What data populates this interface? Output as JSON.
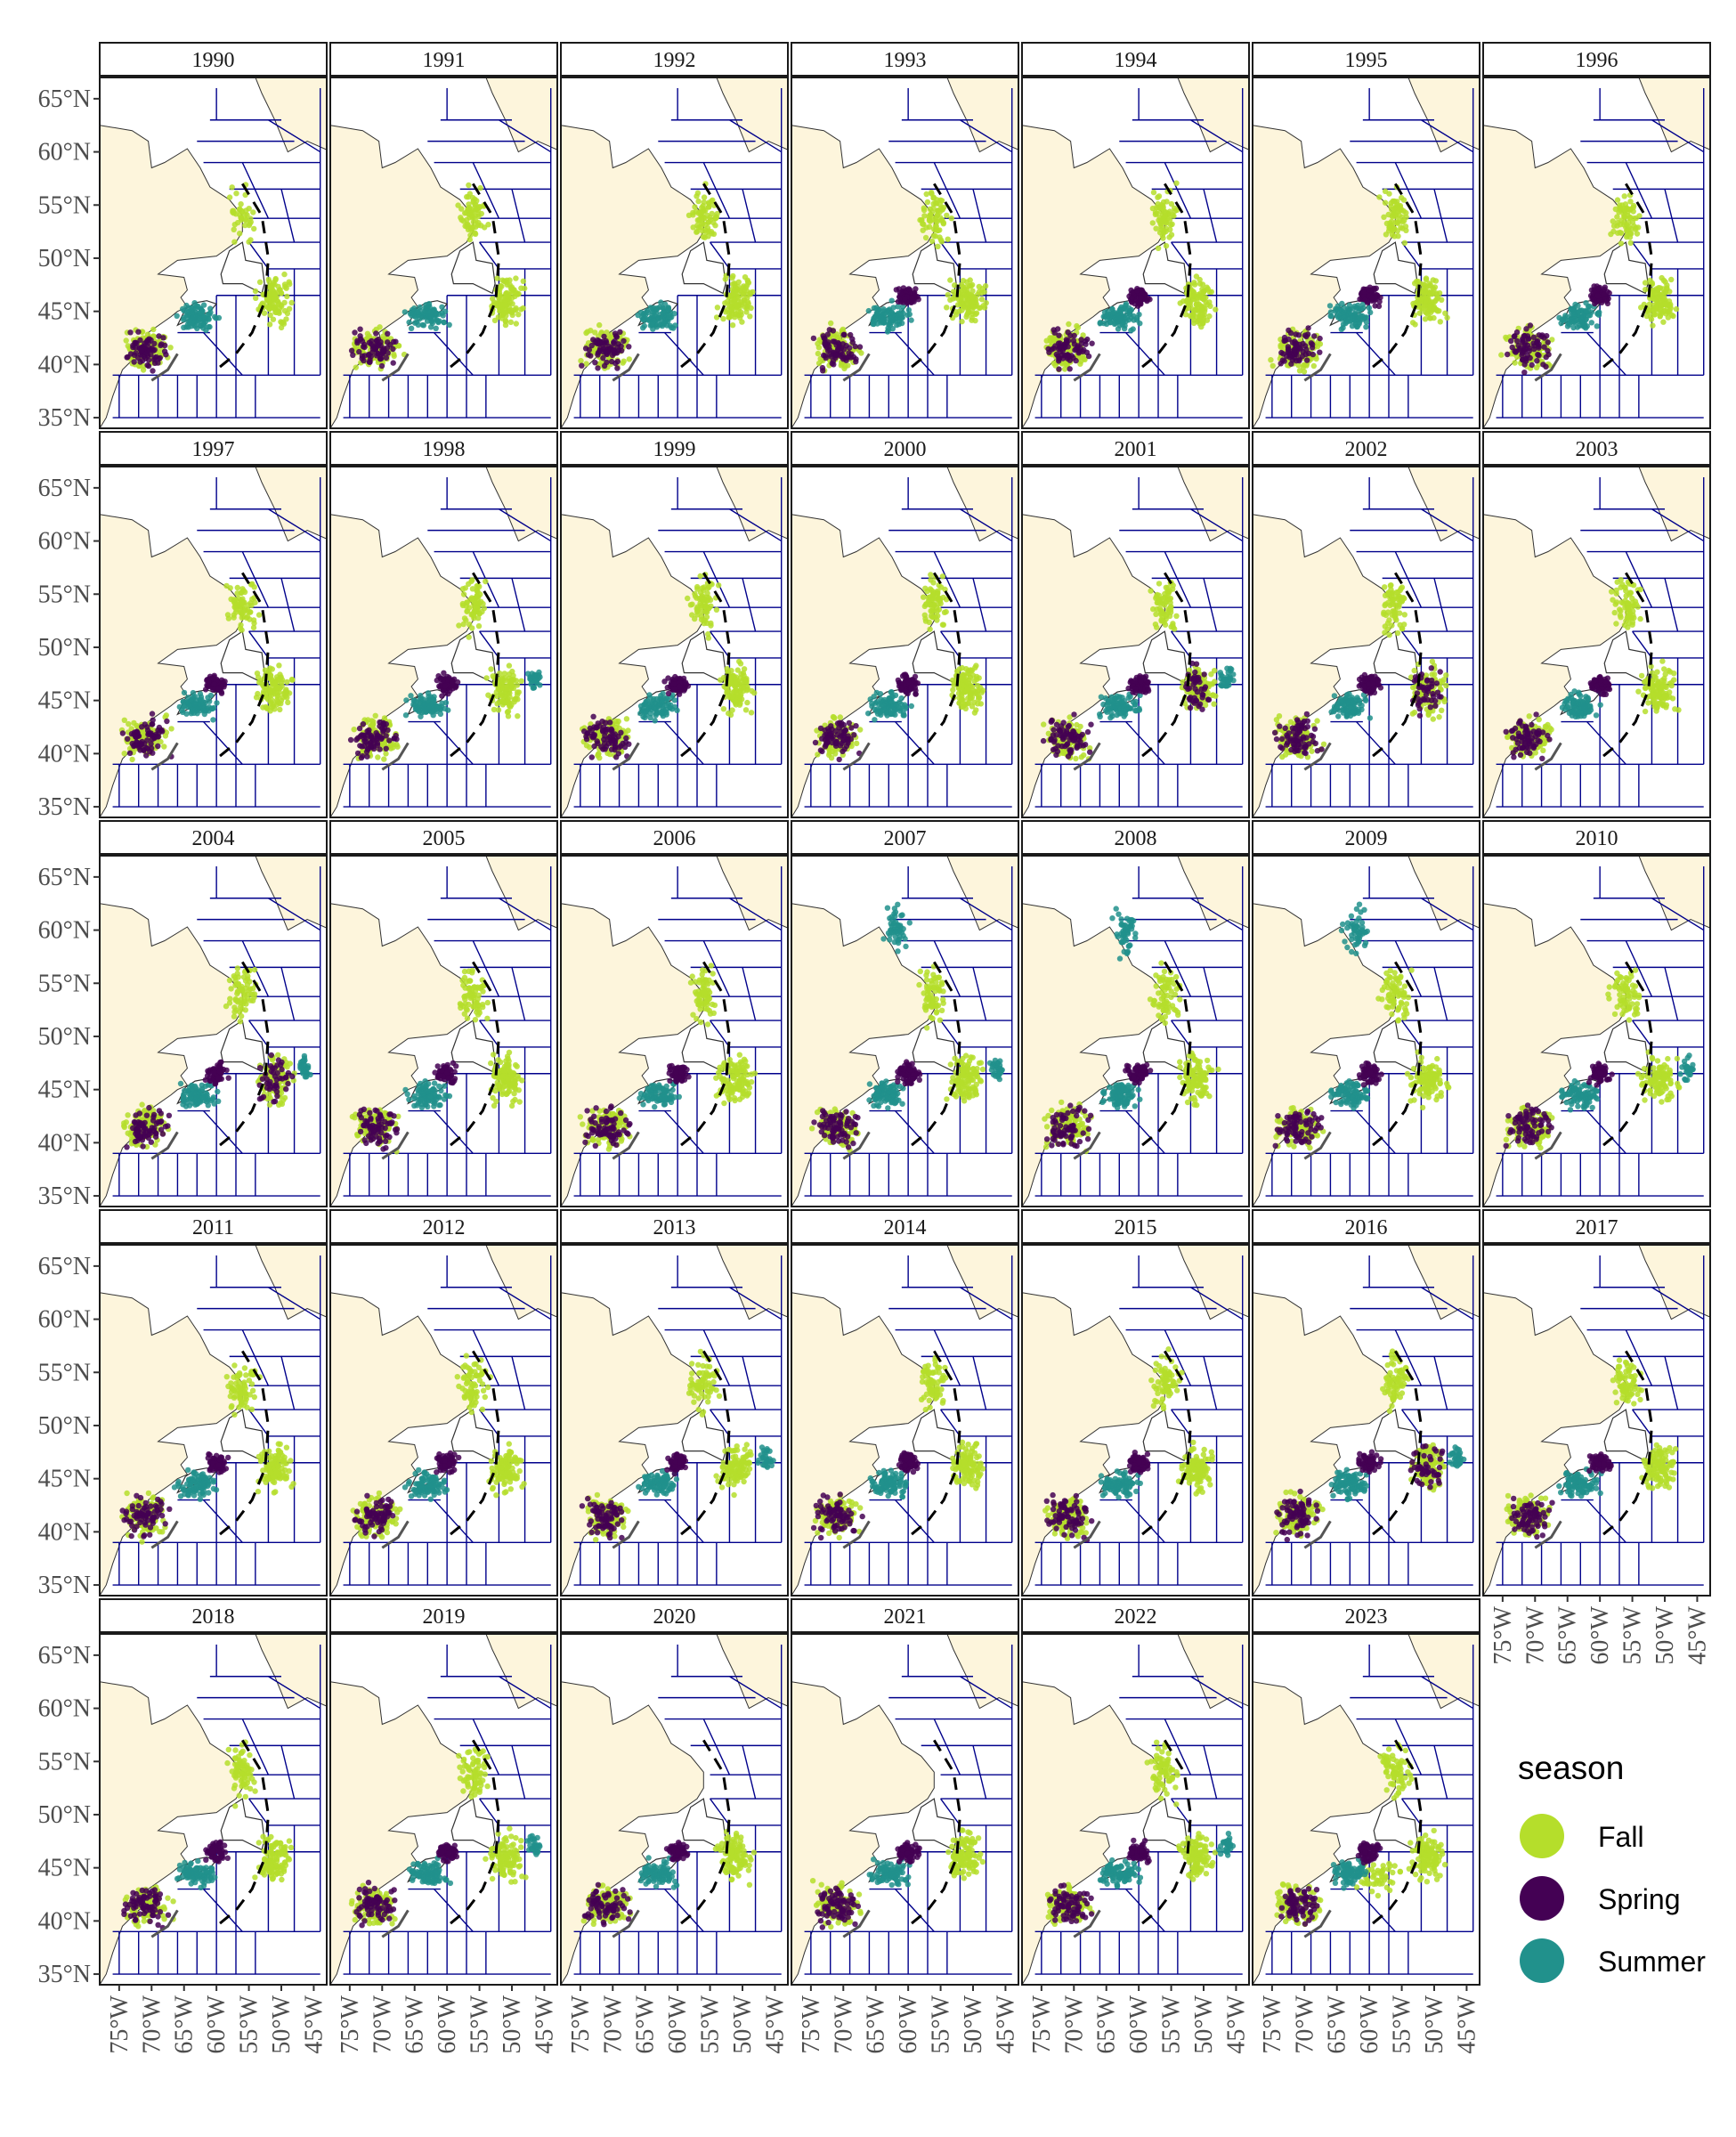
{
  "chart_data": {
    "type": "scatter",
    "title": "",
    "xlabel": "",
    "ylabel": "",
    "facet_by": "year",
    "panels": [
      "1990",
      "1991",
      "1992",
      "1993",
      "1994",
      "1995",
      "1996",
      "1997",
      "1998",
      "1999",
      "2000",
      "2001",
      "2002",
      "2003",
      "2004",
      "2005",
      "2006",
      "2007",
      "2008",
      "2009",
      "2010",
      "2011",
      "2012",
      "2013",
      "2014",
      "2015",
      "2016",
      "2017",
      "2018",
      "2019",
      "2020",
      "2021",
      "2022",
      "2023"
    ],
    "x_ticks": [
      "75°W",
      "70°W",
      "65°W",
      "60°W",
      "55°W",
      "50°W",
      "45°W"
    ],
    "x_tick_values": [
      -75,
      -70,
      -65,
      -60,
      -55,
      -50,
      -45
    ],
    "y_ticks": [
      "35°N",
      "40°N",
      "45°N",
      "50°N",
      "55°N",
      "60°N",
      "65°N"
    ],
    "y_tick_values": [
      35,
      40,
      45,
      50,
      55,
      60,
      65
    ],
    "xlim": [
      -78,
      -43
    ],
    "ylim": [
      34,
      67
    ],
    "legend": {
      "title": "season",
      "position": "right",
      "entries": [
        {
          "label": "Fall",
          "color": "#b5de2b"
        },
        {
          "label": "Spring",
          "color": "#440154"
        },
        {
          "label": "Summer",
          "color": "#21918c"
        }
      ]
    },
    "land_color": "#fdf5dc",
    "division_line_color": "#00008b",
    "series": [
      {
        "name": "Fall",
        "color": "#b5de2b"
      },
      {
        "name": "Spring",
        "color": "#440154"
      },
      {
        "name": "Summer",
        "color": "#21918c"
      }
    ]
  }
}
